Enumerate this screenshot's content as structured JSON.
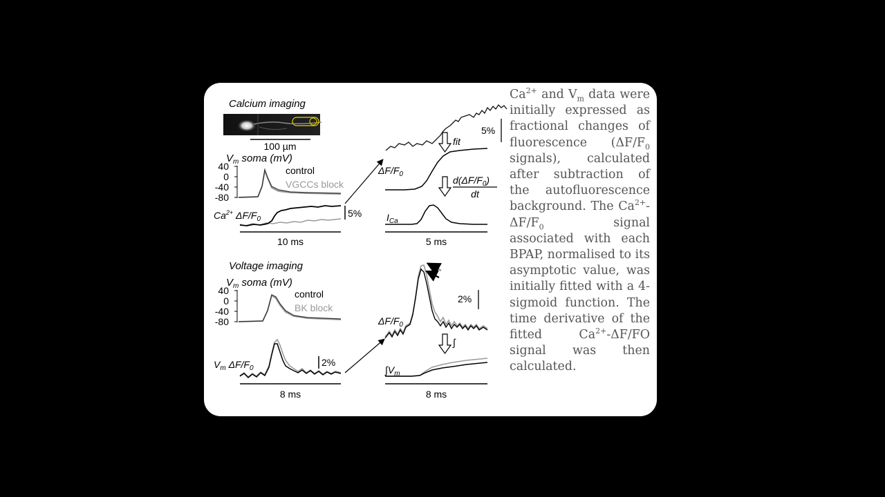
{
  "figure": {
    "calcium": {
      "title": "Calcium imaging",
      "scalebar_image": "100 µm",
      "vm_axis": "V",
      "vm_axis_sub": "m",
      "vm_axis_rest": " soma (mV)",
      "ticks": [
        "40",
        "0",
        "-40",
        "-80"
      ],
      "legend_control": "control",
      "legend_block": "VGCCs block",
      "ca_label_pre": "Ca",
      "ca_label_sup": "2+",
      "ca_label_post": " ΔF/F",
      "ca_label_sub": "0",
      "scale_pct": "5%",
      "time_left": "10 ms",
      "dff_label": "ΔF/F",
      "dff_sub": "0",
      "fit_label": "fit",
      "deriv_num": "d(ΔF/F",
      "deriv_num_sub": "0",
      "deriv_num_end": ")",
      "deriv_den": "dt",
      "ica_label": "I",
      "ica_sub": "Ca",
      "scale_pct_right": "5%",
      "time_right": "5 ms"
    },
    "voltage": {
      "title": "Voltage imaging",
      "vm_axis": "V",
      "vm_axis_sub": "m",
      "vm_axis_rest": " soma (mV)",
      "ticks": [
        "40",
        "0",
        "-40",
        "-80"
      ],
      "legend_control": "control",
      "legend_block": "BK block",
      "vm_dff_label": "V",
      "vm_dff_sub": "m",
      "vm_dff_rest": " ΔF/F",
      "vm_dff_sub2": "0",
      "scale_pct": "2%",
      "time_left": "8 ms",
      "dff_label": "ΔF/F",
      "dff_sub": "0",
      "integral_symbol": "∫",
      "int_vm_label": "∫V",
      "int_vm_sub": "m",
      "scale_pct_right": "2%",
      "time_right": "8 ms"
    }
  },
  "text": {
    "t1": "Ca",
    "t1_sup": "2+",
    "t2": " and V",
    "t2_sub": "m",
    "t3": " data were initially expressed as fractional changes of fluorescence (ΔF/F",
    "t3_sub": "0",
    "t4": " signals), calculated after subtraction of the autofluorescence background. The Ca",
    "t4_sup": "2+",
    "t5": "- ΔF/F",
    "t5_sub": "0",
    "t6": " signal associated with each BPAP, normalised to its asymptotic value, was initially fitted with a 4-sigmoid function. The time derivative of the fitted Ca",
    "t6_sup": "2+",
    "t7": "-ΔF/FO signal was then calculated."
  }
}
